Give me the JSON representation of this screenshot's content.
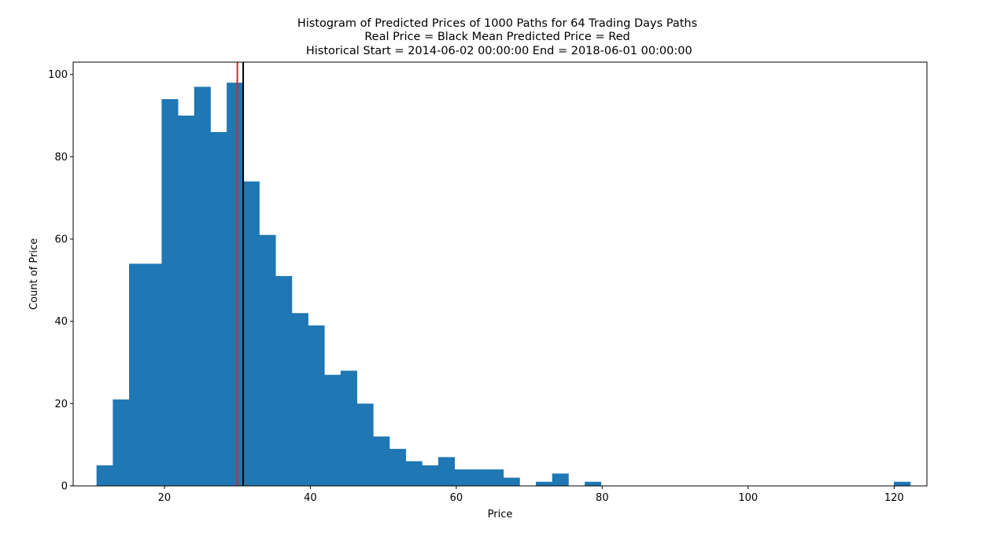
{
  "chart_data": {
    "type": "bar",
    "title_lines": [
      "Histogram of Predicted Prices of 1000 Paths for 64 Trading Days Paths",
      "Real Price = Black Mean Predicted Price = Red",
      " Historical Start = 2014-06-02 00:00:00 End = 2018-06-01 00:00:00"
    ],
    "xlabel": "Price",
    "ylabel": "Count of Price",
    "xlim": [
      7.5,
      124.5
    ],
    "ylim": [
      0,
      103
    ],
    "xticks": [
      20,
      40,
      60,
      80,
      100,
      120
    ],
    "yticks": [
      0,
      20,
      40,
      60,
      80,
      100
    ],
    "bins": {
      "start": 10.7,
      "width": 2.23,
      "counts": [
        5,
        21,
        54,
        54,
        94,
        90,
        97,
        86,
        98,
        74,
        61,
        51,
        42,
        39,
        27,
        28,
        20,
        12,
        9,
        6,
        5,
        7,
        4,
        4,
        4,
        2,
        0,
        1,
        3,
        0,
        1,
        0,
        0,
        0,
        0,
        0,
        0,
        0,
        0,
        0,
        0,
        0,
        0,
        0,
        0,
        0,
        0,
        0,
        0,
        1
      ]
    },
    "lines": [
      {
        "name": "Mean Predicted Price",
        "x": 30.0,
        "color": "#d62728"
      },
      {
        "name": "Real Price",
        "x": 30.8,
        "color": "#000000"
      }
    ],
    "bar_color": "#1f77b4",
    "grid": false
  }
}
